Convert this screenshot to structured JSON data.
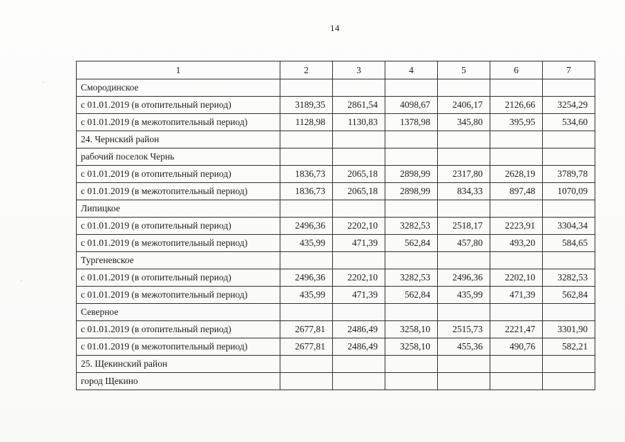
{
  "page": {
    "number": "14"
  },
  "colors": {
    "ink": "#1b1b1b",
    "border": "#2e2c2a",
    "paper": "#fbfbfa"
  },
  "table": {
    "header": [
      "1",
      "2",
      "3",
      "4",
      "5",
      "6",
      "7"
    ],
    "rows": [
      {
        "type": "section",
        "cells": [
          "Смородинское",
          "",
          "",
          "",
          "",
          "",
          ""
        ]
      },
      {
        "type": "data",
        "cells": [
          "с 01.01.2019 (в отопительный период)",
          "3189,35",
          "2861,54",
          "4098,67",
          "2406,17",
          "2126,66",
          "3254,29"
        ]
      },
      {
        "type": "data",
        "cells": [
          "с 01.01.2019 (в межотопительный период)",
          "1128,98",
          "1130,83",
          "1378,98",
          "345,80",
          "395,95",
          "534,60"
        ]
      },
      {
        "type": "section",
        "cells": [
          "24. Чернский район",
          "",
          "",
          "",
          "",
          "",
          ""
        ]
      },
      {
        "type": "section",
        "cells": [
          "рабочий поселок Чернь",
          "",
          "",
          "",
          "",
          "",
          ""
        ]
      },
      {
        "type": "data",
        "cells": [
          "с 01.01.2019 (в отопительный период)",
          "1836,73",
          "2065,18",
          "2898,99",
          "2317,80",
          "2628,19",
          "3789,78"
        ]
      },
      {
        "type": "data",
        "cells": [
          "с 01.01.2019 (в межотопительный период)",
          "1836,73",
          "2065,18",
          "2898,99",
          "834,33",
          "897,48",
          "1070,09"
        ]
      },
      {
        "type": "section",
        "cells": [
          "Липицкое",
          "",
          "",
          "",
          "",
          "",
          ""
        ]
      },
      {
        "type": "data",
        "cells": [
          "с 01.01.2019 (в отопительный период)",
          "2496,36",
          "2202,10",
          "3282,53",
          "2518,17",
          "2223,91",
          "3304,34"
        ]
      },
      {
        "type": "data",
        "cells": [
          "с 01.01.2019 (в межотопительный период)",
          "435,99",
          "471,39",
          "562,84",
          "457,80",
          "493,20",
          "584,65"
        ]
      },
      {
        "type": "section",
        "cells": [
          "Тургеневское",
          "",
          "",
          "",
          "",
          "",
          ""
        ]
      },
      {
        "type": "data",
        "cells": [
          "с 01.01.2019 (в отопительный период)",
          "2496,36",
          "2202,10",
          "3282,53",
          "2496,36",
          "2202,10",
          "3282,53"
        ]
      },
      {
        "type": "data",
        "cells": [
          "с 01.01.2019 (в межотопительный период)",
          "435,99",
          "471,39",
          "562,84",
          "435,99",
          "471,39",
          "562,84"
        ]
      },
      {
        "type": "section",
        "cells": [
          "Северное",
          "",
          "",
          "",
          "",
          "",
          ""
        ]
      },
      {
        "type": "data",
        "cells": [
          "с 01.01.2019 (в отопительный период)",
          "2677,81",
          "2486,49",
          "3258,10",
          "2515,73",
          "2221,47",
          "3301,90"
        ]
      },
      {
        "type": "data",
        "cells": [
          "с 01.01.2019 (в межотопительный период)",
          "2677,81",
          "2486,49",
          "3258,10",
          "455,36",
          "490,76",
          "582,21"
        ]
      },
      {
        "type": "section",
        "cells": [
          "25. Щекинский район",
          "",
          "",
          "",
          "",
          "",
          ""
        ]
      },
      {
        "type": "section",
        "cells": [
          "город Щекино",
          "",
          "",
          "",
          "",
          "",
          ""
        ]
      }
    ]
  }
}
